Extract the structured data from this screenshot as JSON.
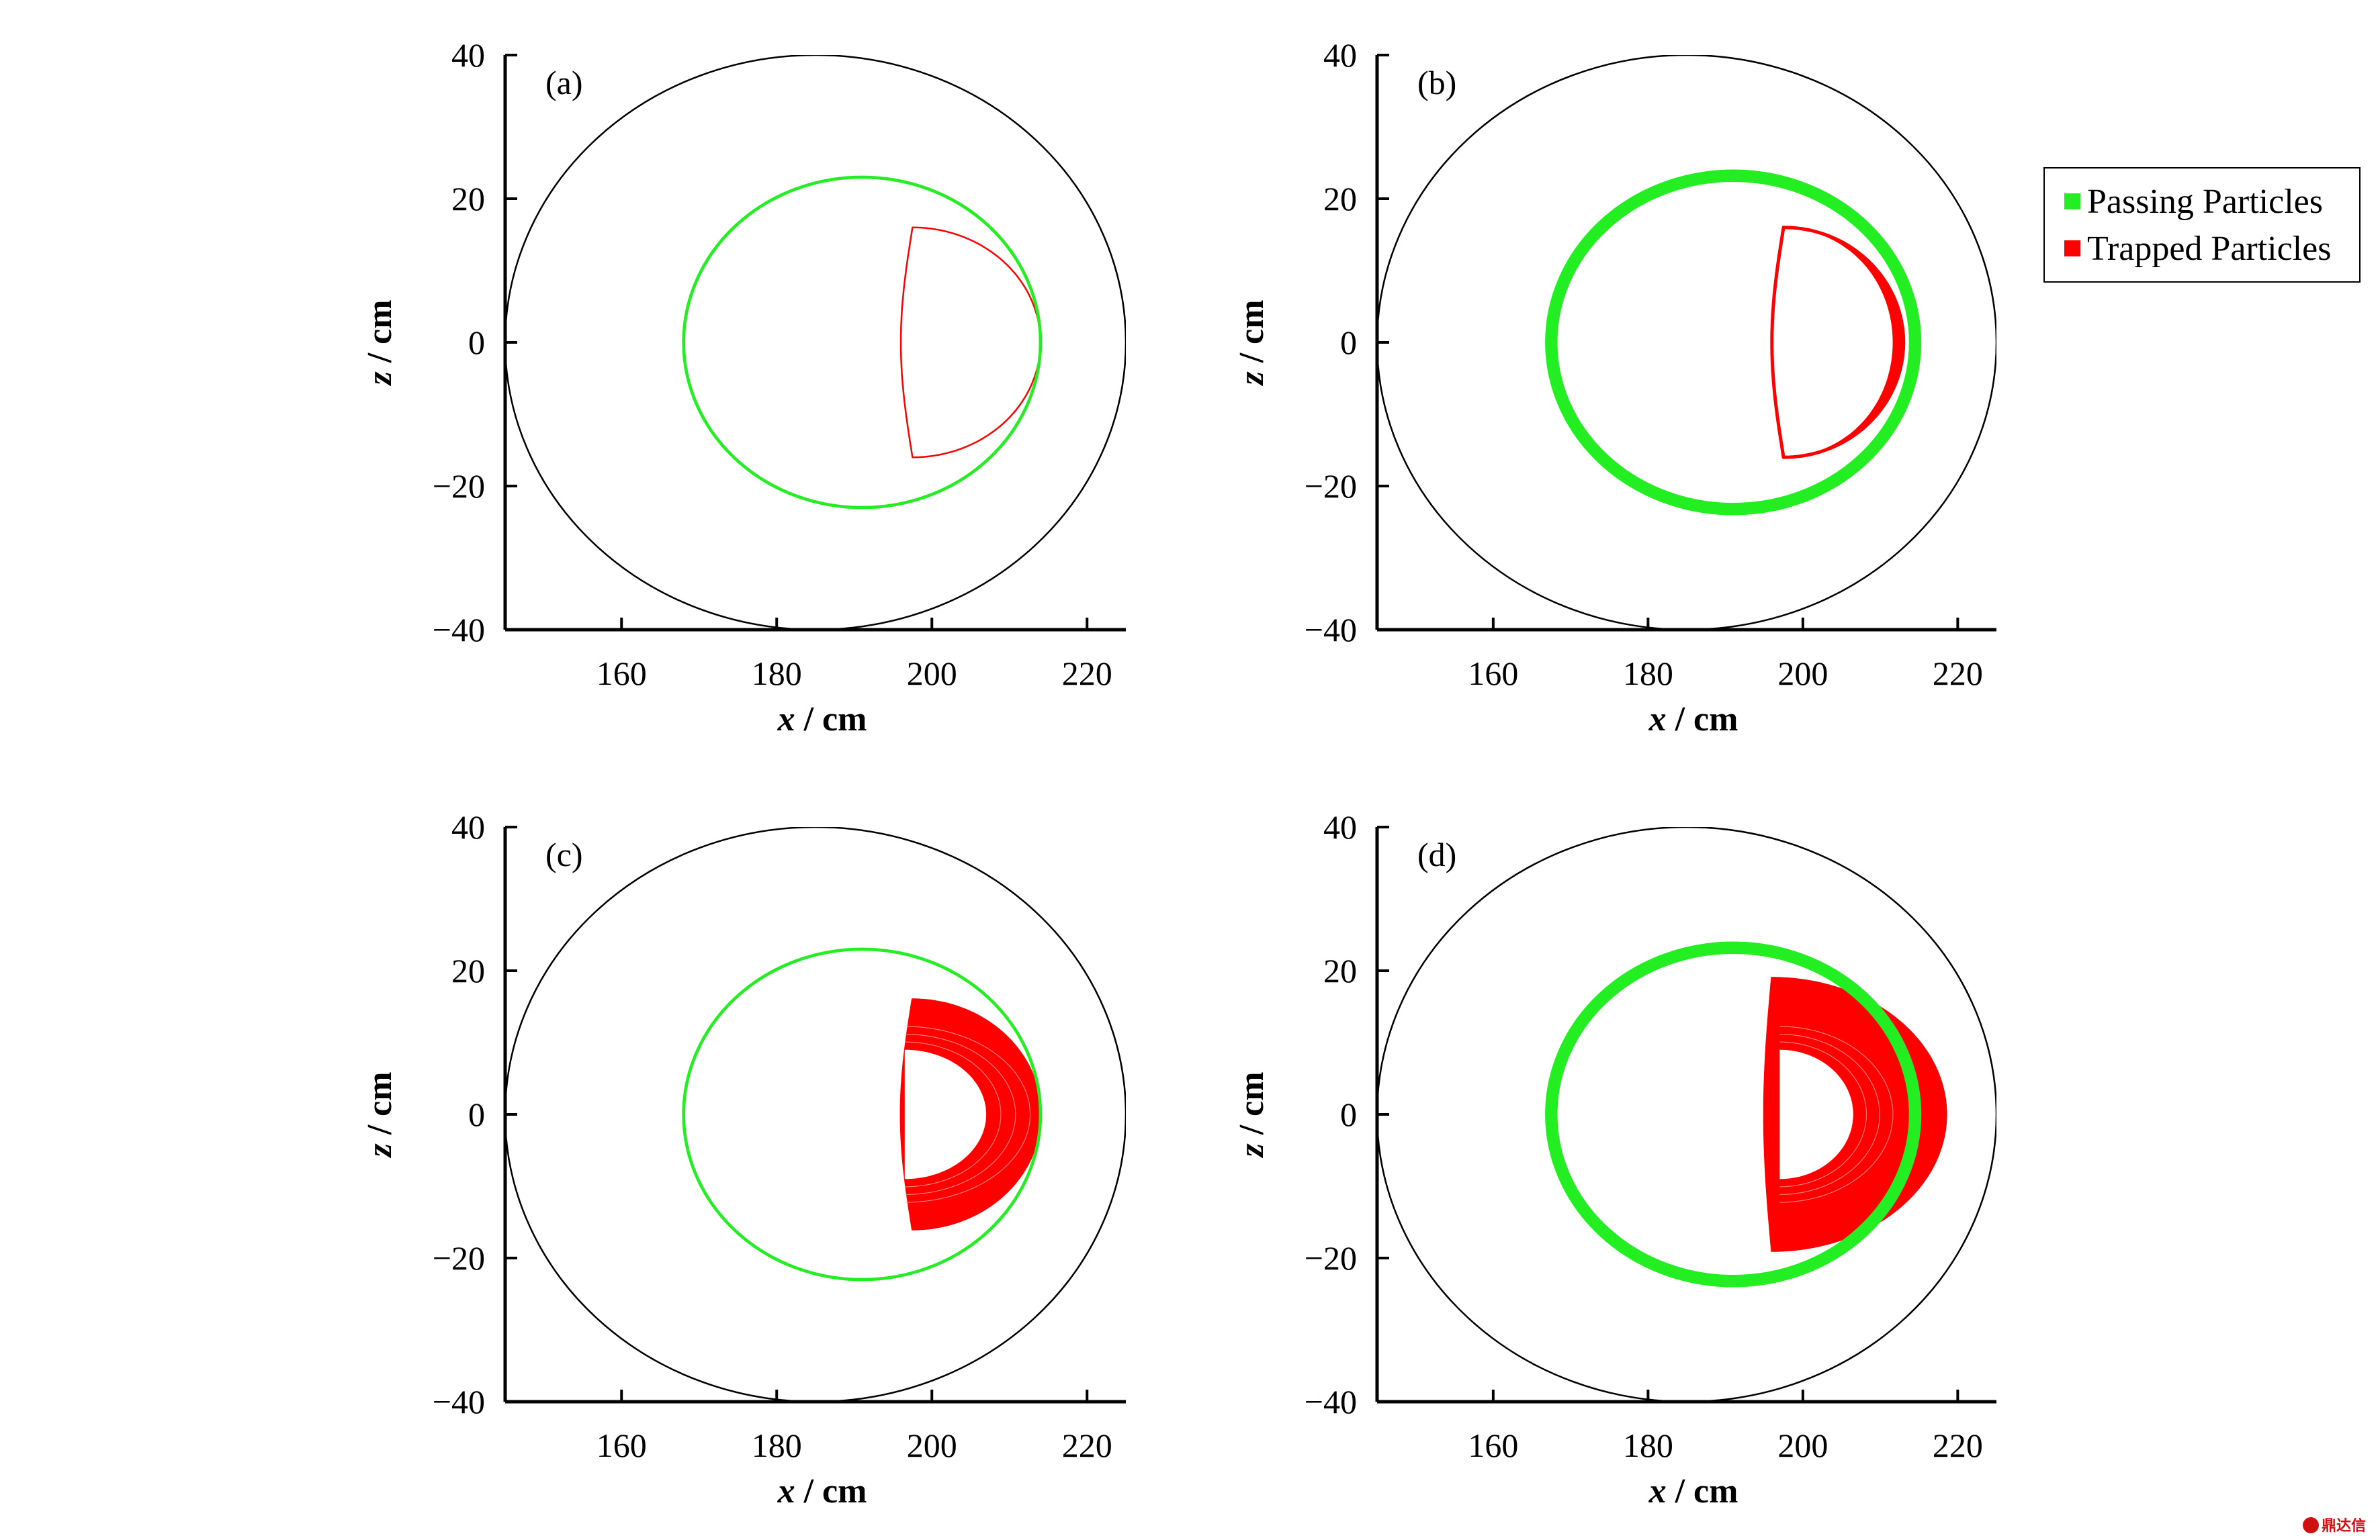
{
  "chart_data": [
    {
      "type": "line",
      "panel": "(a)",
      "xlabel_var": "x",
      "xlabel_unit": " / cm",
      "ylabel_var": "z",
      "ylabel_unit": " / cm",
      "xlim": [
        145,
        225
      ],
      "ylim": [
        -40,
        40
      ],
      "xticks": [
        160,
        180,
        200,
        220
      ],
      "yticks": [
        40,
        20,
        0,
        -20,
        -40
      ],
      "boundary": {
        "cx": 185,
        "cz": 0,
        "r": 40
      },
      "passing": {
        "cx": 191,
        "cz": 0,
        "rx": 23,
        "rz": 23,
        "thickness": 0.4
      },
      "trapped": {
        "mode": "line",
        "inner_x": 196,
        "outer_x": 214,
        "half_height": 16,
        "bulge": 1.5,
        "thickness": 0.4
      }
    },
    {
      "type": "line",
      "panel": "(b)",
      "xlabel_var": "x",
      "xlabel_unit": " / cm",
      "ylabel_var": "z",
      "ylabel_unit": " / cm",
      "xlim": [
        145,
        225
      ],
      "ylim": [
        -40,
        40
      ],
      "xticks": [
        160,
        180,
        200,
        220
      ],
      "yticks": [
        40,
        20,
        0,
        -20,
        -40
      ],
      "boundary": {
        "cx": 185,
        "cz": 0,
        "r": 40
      },
      "passing": {
        "cx": 191,
        "cz": 0,
        "rx": 23.5,
        "rz": 23.2,
        "thickness": 1.6
      },
      "trapped": {
        "mode": "band",
        "inner_x": 196,
        "outer_x": 213,
        "half_height": 16,
        "bulge": 1.5,
        "thickness": 1.4
      }
    },
    {
      "type": "line",
      "panel": "(c)",
      "xlabel_var": "x",
      "xlabel_unit": " / cm",
      "ylabel_var": "z",
      "ylabel_unit": " / cm",
      "xlim": [
        145,
        225
      ],
      "ylim": [
        -40,
        40
      ],
      "xticks": [
        160,
        180,
        200,
        220
      ],
      "yticks": [
        40,
        20,
        0,
        -20,
        -40
      ],
      "boundary": {
        "cx": 185,
        "cz": 0,
        "r": 40
      },
      "passing": {
        "cx": 191,
        "cz": 0,
        "rx": 23,
        "rz": 23,
        "thickness": 0.4
      },
      "trapped": {
        "mode": "filled",
        "inner_x": 196,
        "outer_x": 214,
        "half_height": 16,
        "bulge": 1.5,
        "hole": {
          "x0": 196.5,
          "x1": 207,
          "half_height": 9
        }
      }
    },
    {
      "type": "line",
      "panel": "(d)",
      "xlabel_var": "x",
      "xlabel_unit": " / cm",
      "ylabel_var": "z",
      "ylabel_unit": " / cm",
      "xlim": [
        145,
        225
      ],
      "ylim": [
        -40,
        40
      ],
      "xticks": [
        160,
        180,
        200,
        220
      ],
      "yticks": [
        40,
        20,
        0,
        -20,
        -40
      ],
      "boundary": {
        "cx": 185,
        "cz": 0,
        "r": 40
      },
      "passing": {
        "cx": 191,
        "cz": 0,
        "rx": 23.5,
        "rz": 23.2,
        "thickness": 1.6
      },
      "trapped": {
        "mode": "filled",
        "inner_x": 195,
        "outer_x": 218.5,
        "half_height": 19,
        "bulge": 1.0,
        "hole": {
          "x0": 197,
          "x1": 206.5,
          "half_height": 9
        }
      }
    }
  ],
  "legend": {
    "entries": [
      {
        "label": "Passing Particles",
        "color": "#22ee22"
      },
      {
        "label": "Trapped Particles",
        "color": "#ff0000"
      }
    ]
  },
  "colors": {
    "passing": "#22ee22",
    "trapped": "#ff0000",
    "boundary": "#000000"
  },
  "watermark": {
    "text": "鼎达信"
  }
}
